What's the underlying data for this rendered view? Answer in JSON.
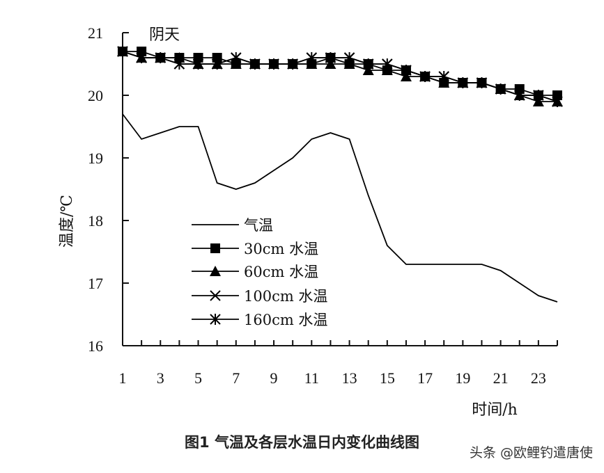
{
  "chart_data": {
    "type": "line",
    "annotation": "阴天",
    "ylabel": "温度/℃",
    "xlabel": "时间/h",
    "ylim": [
      16,
      21
    ],
    "xlim": [
      1,
      24
    ],
    "yticks": [
      16,
      17,
      18,
      19,
      20,
      21
    ],
    "xticks": [
      1,
      3,
      5,
      7,
      9,
      11,
      13,
      15,
      17,
      19,
      21,
      23
    ],
    "grid": false,
    "legend_position": "center-left",
    "x": [
      1,
      2,
      3,
      4,
      5,
      6,
      7,
      8,
      9,
      10,
      11,
      12,
      13,
      14,
      15,
      16,
      17,
      18,
      19,
      20,
      21,
      22,
      23,
      24
    ],
    "series": [
      {
        "name": "气温",
        "marker": "none",
        "values": [
          19.7,
          19.3,
          19.4,
          19.5,
          19.5,
          18.6,
          18.5,
          18.6,
          18.8,
          19.0,
          19.3,
          19.4,
          19.3,
          18.4,
          17.6,
          17.3,
          17.3,
          17.3,
          17.3,
          17.3,
          17.2,
          17.0,
          16.8,
          16.7
        ]
      },
      {
        "name": "30cm 水温",
        "marker": "square",
        "values": [
          20.7,
          20.7,
          20.6,
          20.6,
          20.6,
          20.6,
          20.5,
          20.5,
          20.5,
          20.5,
          20.5,
          20.6,
          20.5,
          20.5,
          20.4,
          20.4,
          20.3,
          20.2,
          20.2,
          20.2,
          20.1,
          20.1,
          20.0,
          20.0
        ]
      },
      {
        "name": "60cm 水温",
        "marker": "triangle",
        "values": [
          20.7,
          20.6,
          20.6,
          20.6,
          20.5,
          20.5,
          20.5,
          20.5,
          20.5,
          20.5,
          20.5,
          20.5,
          20.5,
          20.4,
          20.4,
          20.3,
          20.3,
          20.2,
          20.2,
          20.2,
          20.1,
          20.0,
          19.9,
          19.9
        ]
      },
      {
        "name": "100cm 水温",
        "marker": "x",
        "values": [
          20.7,
          20.6,
          20.6,
          20.5,
          20.5,
          20.5,
          20.6,
          20.5,
          20.5,
          20.5,
          20.6,
          20.6,
          20.6,
          20.5,
          20.5,
          20.4,
          20.3,
          20.3,
          20.2,
          20.2,
          20.1,
          20.0,
          20.0,
          19.9
        ]
      },
      {
        "name": "160cm 水温",
        "marker": "asterisk",
        "values": [
          20.7,
          20.6,
          20.6,
          20.5,
          20.5,
          20.5,
          20.6,
          20.5,
          20.5,
          20.5,
          20.6,
          20.6,
          20.6,
          20.5,
          20.5,
          20.4,
          20.3,
          20.3,
          20.2,
          20.2,
          20.1,
          20.0,
          20.0,
          19.9
        ]
      }
    ]
  },
  "caption": "图1  气温及各层水温日内变化曲线图",
  "watermark": "头条 @欧鲤钓遣唐使"
}
